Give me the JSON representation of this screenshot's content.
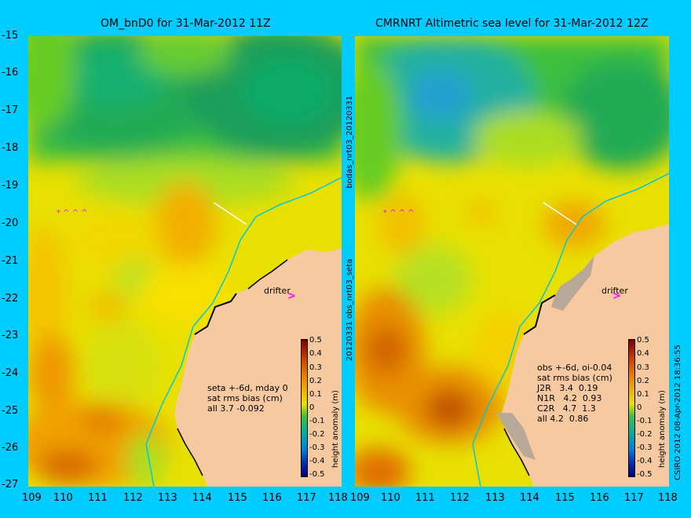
{
  "left_panel": {
    "title": "OM_bnD0 for 31-Mar-2012 11Z",
    "x_ticks": [
      "109",
      "110",
      "111",
      "112",
      "113",
      "114",
      "115",
      "116",
      "117",
      "118"
    ],
    "y_ticks": [
      "-15",
      "-16",
      "-17",
      "-18",
      "-19",
      "-20",
      "-21",
      "-22",
      "-23",
      "-24",
      "-25",
      "-26",
      "-27"
    ],
    "drifter_label": "drifter",
    "notes": [
      "seta +-6d, mday 0",
      "sat rms bias (cm)",
      "all 3.7 -0.092"
    ],
    "colorbar_label": "height anomaly (m)",
    "colorbar_ticks": [
      "0.5",
      "0.4",
      "0.3",
      "0.2",
      "0.1",
      "0",
      "-0.1",
      "-0.2",
      "-0.3",
      "-0.4",
      "-0.5"
    ]
  },
  "right_panel": {
    "title": "CMRNRT Altimetric sea level  for 31-Mar-2012 12Z",
    "x_ticks": [
      "109",
      "110",
      "111",
      "112",
      "113",
      "114",
      "115",
      "116",
      "117",
      "118"
    ],
    "drifter_label": "drifter",
    "notes": [
      "obs +-6d, oi-0.04",
      "sat rms bias (cm)",
      "J2R   3.4  0.19",
      "N1R   4.2  0.93",
      "C2R   4.7  1.3",
      "all 4.2  0.86"
    ],
    "colorbar_label": "height anomaly (m)",
    "colorbar_ticks": [
      "0.5",
      "0.4",
      "0.3",
      "0.2",
      "0.1",
      "0",
      "-0.1",
      "-0.2",
      "-0.3",
      "-0.4",
      "-0.5"
    ]
  },
  "side_labels": {
    "mid_top": "bodas_nrt03_20120331",
    "mid_bottom": "20120331 obs_nrt03_seta",
    "right": "CSIRO 2012   08-Apr-2012 18:36:55"
  },
  "colors": {
    "background": "#00ccff",
    "land": "#f7c9a0",
    "contour": "#00c8e0",
    "drifter": "#ff00ff"
  }
}
